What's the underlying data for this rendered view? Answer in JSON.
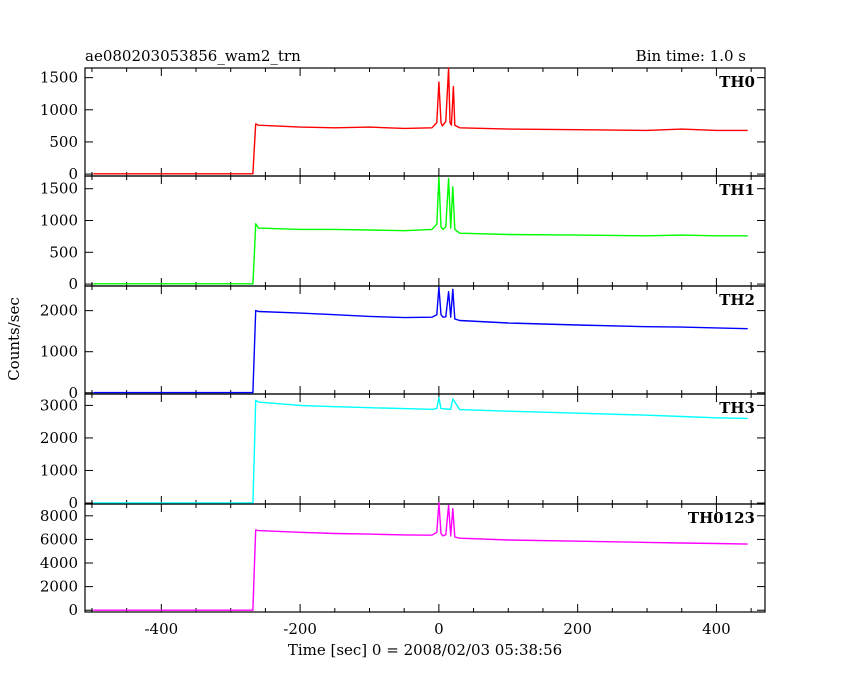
{
  "chart_data": {
    "type": "line",
    "title_left": "ae080203053856_wam2_trn",
    "title_right": "Bin time: 1.0 s",
    "xlabel": "Time [sec] 0 = 2008/02/03 05:38:56",
    "ylabel": "Counts/sec",
    "xlim": [
      -510,
      470
    ],
    "xticks": [
      -400,
      -200,
      0,
      200,
      400
    ],
    "panels": [
      {
        "name": "TH0",
        "color": "#ff0000",
        "ylim": [
          -30,
          1650
        ],
        "yticks": [
          0,
          500,
          1000,
          1500
        ],
        "x": [
          -498,
          -268,
          -266,
          -264,
          -260,
          -200,
          -150,
          -100,
          -50,
          -10,
          -3,
          0,
          3,
          5,
          10,
          14,
          16,
          18,
          21,
          23,
          30,
          100,
          200,
          300,
          350,
          400,
          445
        ],
        "y": [
          5,
          5,
          400,
          780,
          760,
          730,
          720,
          730,
          710,
          720,
          800,
          1430,
          800,
          750,
          820,
          1650,
          800,
          760,
          1360,
          760,
          720,
          700,
          690,
          680,
          700,
          680,
          680
        ]
      },
      {
        "name": "TH1",
        "color": "#00ff00",
        "ylim": [
          -30,
          1700
        ],
        "yticks": [
          0,
          500,
          1000,
          1500
        ],
        "x": [
          -498,
          -268,
          -266,
          -264,
          -260,
          -200,
          -150,
          -100,
          -50,
          -10,
          -3,
          0,
          3,
          6,
          10,
          14,
          17,
          20,
          23,
          30,
          100,
          200,
          300,
          350,
          400,
          445
        ],
        "y": [
          5,
          5,
          450,
          950,
          880,
          860,
          860,
          850,
          840,
          860,
          940,
          1680,
          900,
          860,
          900,
          1660,
          880,
          1530,
          860,
          800,
          780,
          770,
          760,
          770,
          760,
          760
        ]
      },
      {
        "name": "TH2",
        "color": "#0000ff",
        "ylim": [
          -30,
          2600
        ],
        "yticks": [
          0,
          1000,
          2000
        ],
        "x": [
          -498,
          -268,
          -266,
          -264,
          -260,
          -200,
          -150,
          -100,
          -50,
          -10,
          -3,
          0,
          3,
          6,
          10,
          14,
          17,
          20,
          23,
          30,
          100,
          200,
          300,
          350,
          400,
          445
        ],
        "y": [
          5,
          5,
          1000,
          2000,
          1980,
          1940,
          1900,
          1860,
          1830,
          1840,
          1900,
          2570,
          1900,
          1840,
          1850,
          2460,
          1840,
          2520,
          1800,
          1760,
          1700,
          1650,
          1610,
          1600,
          1580,
          1560
        ]
      },
      {
        "name": "TH3",
        "color": "#00ffff",
        "ylim": [
          -30,
          3350
        ],
        "yticks": [
          0,
          1000,
          2000,
          3000
        ],
        "x": [
          -498,
          -268,
          -266,
          -264,
          -260,
          -200,
          -150,
          -100,
          -50,
          -10,
          -3,
          0,
          3,
          10,
          17,
          20,
          30,
          100,
          200,
          300,
          350,
          400,
          445
        ],
        "y": [
          5,
          5,
          1500,
          3150,
          3100,
          3000,
          2960,
          2930,
          2900,
          2880,
          2900,
          3240,
          2900,
          2890,
          2880,
          3200,
          2870,
          2820,
          2760,
          2700,
          2660,
          2620,
          2600
        ]
      },
      {
        "name": "TH0123",
        "color": "#ff00ff",
        "ylim": [
          -150,
          9000
        ],
        "yticks": [
          0,
          2000,
          4000,
          6000,
          8000
        ],
        "x": [
          -498,
          -268,
          -266,
          -264,
          -260,
          -200,
          -150,
          -100,
          -50,
          -10,
          -3,
          0,
          3,
          6,
          10,
          14,
          17,
          20,
          23,
          30,
          100,
          200,
          300,
          350,
          400,
          445
        ],
        "y": [
          5,
          5,
          3500,
          6800,
          6750,
          6600,
          6500,
          6450,
          6380,
          6360,
          6600,
          9100,
          6500,
          6300,
          6400,
          8900,
          6300,
          8600,
          6200,
          6100,
          5950,
          5850,
          5750,
          5700,
          5650,
          5600
        ]
      }
    ]
  }
}
